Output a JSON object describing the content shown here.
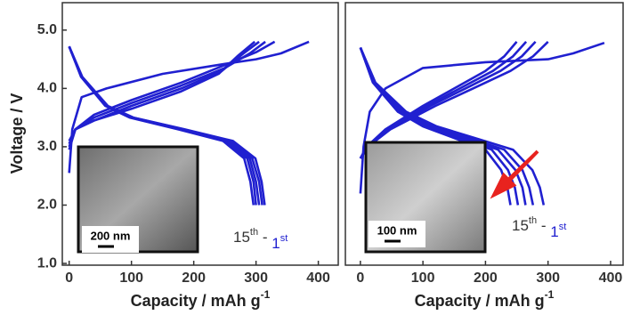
{
  "chart_data": [
    {
      "type": "line",
      "y_label": "Voltage / V",
      "x_label": {
        "text": "Capacity / mAh g",
        "sup": "-1"
      },
      "xlim": [
        -11,
        432
      ],
      "ylim": [
        0.97,
        5.47
      ],
      "xticks": [
        0,
        100,
        200,
        300,
        400
      ],
      "yticks": [
        {
          "value": 1,
          "label": "1.0"
        },
        {
          "value": 2,
          "label": "2.0"
        },
        {
          "value": 3,
          "label": "3.0"
        },
        {
          "value": 4,
          "label": "4.0"
        },
        {
          "value": 5,
          "label": "5.0"
        }
      ],
      "inset_label": "200 nm",
      "annotation": [
        "15",
        "th",
        " - ",
        "1",
        "st"
      ],
      "series": [
        {
          "color": "#2020d0",
          "x": [
            0,
            5,
            20,
            60,
            150,
            250,
            300,
            340,
            385
          ],
          "values": [
            2.55,
            3.3,
            3.85,
            4.0,
            4.25,
            4.42,
            4.5,
            4.6,
            4.8
          ]
        },
        {
          "color": "#2020d0",
          "x": [
            0,
            10,
            40,
            100,
            180,
            250,
            300,
            330
          ],
          "values": [
            2.95,
            3.3,
            3.55,
            3.8,
            4.1,
            4.4,
            4.62,
            4.8
          ]
        },
        {
          "color": "#2020d0",
          "x": [
            0,
            10,
            40,
            100,
            180,
            250,
            290,
            315
          ],
          "values": [
            3.0,
            3.3,
            3.5,
            3.75,
            4.05,
            4.35,
            4.6,
            4.8
          ]
        },
        {
          "color": "#2020d0",
          "x": [
            0,
            10,
            40,
            100,
            180,
            245,
            280,
            305
          ],
          "values": [
            3.05,
            3.3,
            3.45,
            3.7,
            4.0,
            4.3,
            4.6,
            4.8
          ]
        },
        {
          "color": "#2020d0",
          "x": [
            0,
            10,
            40,
            100,
            180,
            240,
            270,
            298
          ],
          "values": [
            3.1,
            3.3,
            3.45,
            3.65,
            3.95,
            4.25,
            4.55,
            4.8
          ]
        },
        {
          "color": "#2020d0",
          "x": [
            0,
            19,
            58,
            97,
            175,
            247,
            281,
            291,
            296
          ],
          "values": [
            4.72,
            4.2,
            3.7,
            3.5,
            3.3,
            3.1,
            2.8,
            2.4,
            2.0
          ]
        },
        {
          "color": "#2020d0",
          "x": [
            0,
            20,
            59,
            99,
            177,
            251,
            286,
            296,
            300
          ],
          "values": [
            4.72,
            4.2,
            3.7,
            3.5,
            3.3,
            3.1,
            2.8,
            2.4,
            2.0
          ]
        },
        {
          "color": "#2020d0",
          "x": [
            0,
            20,
            60,
            100,
            180,
            255,
            290,
            300,
            305
          ],
          "values": [
            4.72,
            4.2,
            3.7,
            3.5,
            3.3,
            3.1,
            2.8,
            2.4,
            2.0
          ]
        },
        {
          "color": "#2020d0",
          "x": [
            0,
            20,
            61,
            102,
            183,
            259,
            294,
            305,
            310
          ],
          "values": [
            4.72,
            4.2,
            3.7,
            3.5,
            3.3,
            3.1,
            2.8,
            2.4,
            2.0
          ]
        },
        {
          "color": "#2020d0",
          "x": [
            0,
            21,
            62,
            103,
            185,
            263,
            299,
            309,
            314
          ],
          "values": [
            4.72,
            4.2,
            3.7,
            3.5,
            3.3,
            3.1,
            2.8,
            2.4,
            2.0
          ]
        }
      ]
    },
    {
      "type": "line",
      "x_label": {
        "text": "Capacity / mAh g",
        "sup": "-1"
      },
      "xlim": [
        -24,
        420
      ],
      "ylim": [
        0.97,
        5.47
      ],
      "xticks": [
        0,
        100,
        200,
        300,
        400
      ],
      "inset_label": "100 nm",
      "annotation": [
        "15",
        "th",
        " - ",
        "1",
        "st"
      ],
      "series": [
        {
          "color": "#2020d0",
          "x": [
            0,
            5,
            15,
            40,
            100,
            200,
            300,
            340,
            390
          ],
          "values": [
            2.2,
            3.0,
            3.6,
            4.0,
            4.35,
            4.45,
            4.5,
            4.6,
            4.78
          ]
        },
        {
          "color": "#2020d0",
          "x": [
            0,
            10,
            40,
            100,
            150,
            200,
            230,
            250
          ],
          "values": [
            2.8,
            3.0,
            3.3,
            3.7,
            4.0,
            4.3,
            4.55,
            4.8
          ]
        },
        {
          "color": "#2020d0",
          "x": [
            0,
            11,
            42,
            106,
            159,
            212,
            244,
            265
          ],
          "values": [
            2.8,
            3.0,
            3.3,
            3.7,
            4.0,
            4.3,
            4.55,
            4.8
          ]
        },
        {
          "color": "#2020d0",
          "x": [
            0,
            11,
            45,
            112,
            168,
            224,
            258,
            280
          ],
          "values": [
            2.8,
            3.0,
            3.3,
            3.7,
            4.0,
            4.3,
            4.55,
            4.8
          ]
        },
        {
          "color": "#2020d0",
          "x": [
            0,
            12,
            48,
            120,
            180,
            240,
            276,
            300
          ],
          "values": [
            2.8,
            3.0,
            3.3,
            3.7,
            4.0,
            4.3,
            4.55,
            4.8
          ]
        },
        {
          "color": "#2020d0",
          "x": [
            0,
            20,
            60,
            100,
            150,
            200,
            225,
            235,
            240
          ],
          "values": [
            4.7,
            4.1,
            3.6,
            3.35,
            3.15,
            2.95,
            2.6,
            2.3,
            2.0
          ]
        },
        {
          "color": "#2020d0",
          "x": [
            0,
            21,
            63,
            105,
            158,
            210,
            236,
            247,
            252
          ],
          "values": [
            4.7,
            4.1,
            3.6,
            3.35,
            3.15,
            2.95,
            2.6,
            2.3,
            2.0
          ]
        },
        {
          "color": "#2020d0",
          "x": [
            0,
            22,
            66,
            110,
            165,
            220,
            248,
            259,
            264
          ],
          "values": [
            4.7,
            4.1,
            3.6,
            3.35,
            3.15,
            2.95,
            2.6,
            2.3,
            2.0
          ]
        },
        {
          "color": "#2020d0",
          "x": [
            0,
            23,
            69,
            115,
            173,
            230,
            259,
            270,
            276
          ],
          "values": [
            4.7,
            4.1,
            3.6,
            3.35,
            3.15,
            2.95,
            2.6,
            2.3,
            2.0
          ]
        },
        {
          "color": "#2020d0",
          "x": [
            0,
            24,
            73,
            122,
            183,
            244,
            275,
            287,
            293
          ],
          "values": [
            4.7,
            4.1,
            3.6,
            3.35,
            3.15,
            2.95,
            2.6,
            2.3,
            2.0
          ]
        }
      ]
    }
  ]
}
